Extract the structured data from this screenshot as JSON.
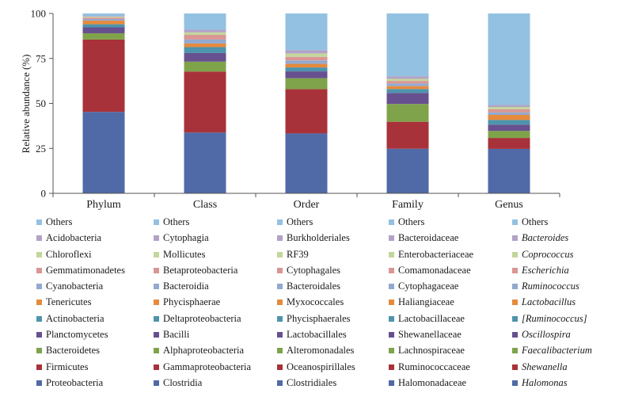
{
  "chart_data": {
    "type": "bar",
    "stacked": true,
    "ylabel": "Relative abundance (%)",
    "ylim": [
      0,
      100
    ],
    "yticks": [
      0,
      25,
      50,
      75,
      100
    ],
    "categories": [
      "Phylum",
      "Class",
      "Order",
      "Family",
      "Genus"
    ],
    "legend_placement": "bottom",
    "stacks": [
      {
        "category": "Phylum",
        "segments": [
          {
            "name": "Proteobacteria",
            "value": 45.3,
            "color": "#4f6aa6"
          },
          {
            "name": "Firmicutes",
            "value": 40.2,
            "color": "#a8323a"
          },
          {
            "name": "Bacteroidetes",
            "value": 3.5,
            "color": "#7fa34a"
          },
          {
            "name": "Planctomycetes",
            "value": 3.3,
            "color": "#67508f"
          },
          {
            "name": "Actinobacteria",
            "value": 1.7,
            "color": "#4d94ac"
          },
          {
            "name": "Tenericutes",
            "value": 2.0,
            "color": "#e68a3c"
          },
          {
            "name": "Cyanobacteria",
            "value": 0.9,
            "color": "#93a9d0"
          },
          {
            "name": "Gemmatimonadetes",
            "value": 0.8,
            "color": "#d99694"
          },
          {
            "name": "Chloroflexi",
            "value": 0.5,
            "color": "#c3d69b"
          },
          {
            "name": "Acidobacteria",
            "value": 0.4,
            "color": "#b2a2c7"
          },
          {
            "name": "Others",
            "value": 1.4,
            "color": "#93c1e1"
          }
        ]
      },
      {
        "category": "Class",
        "segments": [
          {
            "name": "Clostridia",
            "value": 33.8,
            "color": "#4f6aa6"
          },
          {
            "name": "Gammaproteobacteria",
            "value": 33.9,
            "color": "#a8323a"
          },
          {
            "name": "Alphaproteobacteria",
            "value": 5.5,
            "color": "#7fa34a"
          },
          {
            "name": "Bacilli",
            "value": 4.8,
            "color": "#67508f"
          },
          {
            "name": "Deltaproteobacteria",
            "value": 3.3,
            "color": "#4d94ac"
          },
          {
            "name": "Phycisphaerae",
            "value": 2.0,
            "color": "#e68a3c"
          },
          {
            "name": "Bacteroidia",
            "value": 2.2,
            "color": "#93a9d0"
          },
          {
            "name": "Betaproteobacteria",
            "value": 2.6,
            "color": "#d99694"
          },
          {
            "name": "Mollicutes",
            "value": 1.4,
            "color": "#c3d69b"
          },
          {
            "name": "Cytophagia",
            "value": 1.5,
            "color": "#b2a2c7"
          },
          {
            "name": "Others",
            "value": 9.0,
            "color": "#93c1e1"
          }
        ]
      },
      {
        "category": "Order",
        "segments": [
          {
            "name": "Clostridiales",
            "value": 33.3,
            "color": "#4f6aa6"
          },
          {
            "name": "Oceanospirillales",
            "value": 24.6,
            "color": "#a8323a"
          },
          {
            "name": "Alteromonadales",
            "value": 6.1,
            "color": "#7fa34a"
          },
          {
            "name": "Lactobacillales",
            "value": 3.8,
            "color": "#67508f"
          },
          {
            "name": "Phycisphaerales",
            "value": 2.2,
            "color": "#4d94ac"
          },
          {
            "name": "Myxococcales",
            "value": 2.0,
            "color": "#e68a3c"
          },
          {
            "name": "Bacteroidales",
            "value": 1.9,
            "color": "#93a9d0"
          },
          {
            "name": "Cytophagales",
            "value": 2.0,
            "color": "#d99694"
          },
          {
            "name": "RF39",
            "value": 1.9,
            "color": "#c3d69b"
          },
          {
            "name": "Burkholderiales",
            "value": 1.8,
            "color": "#b2a2c7"
          },
          {
            "name": "Others",
            "value": 20.4,
            "color": "#93c1e1"
          }
        ]
      },
      {
        "category": "Family",
        "segments": [
          {
            "name": "Halomonadaceae",
            "value": 24.8,
            "color": "#4f6aa6"
          },
          {
            "name": "Ruminococcaceae",
            "value": 15.0,
            "color": "#a8323a"
          },
          {
            "name": "Lachnospiraceae",
            "value": 9.9,
            "color": "#7fa34a"
          },
          {
            "name": "Shewanellaceae",
            "value": 6.1,
            "color": "#67508f"
          },
          {
            "name": "Lactobacillaceae",
            "value": 2.2,
            "color": "#4d94ac"
          },
          {
            "name": "Haliangiaceae",
            "value": 1.6,
            "color": "#e68a3c"
          },
          {
            "name": "Cytophagaceae",
            "value": 1.5,
            "color": "#93a9d0"
          },
          {
            "name": "Comamonadaceae",
            "value": 1.4,
            "color": "#d99694"
          },
          {
            "name": "Enterobacteriaceae",
            "value": 1.2,
            "color": "#c3d69b"
          },
          {
            "name": "Bacteroidaceae",
            "value": 1.4,
            "color": "#b2a2c7"
          },
          {
            "name": "Others",
            "value": 34.9,
            "color": "#93c1e1"
          }
        ]
      },
      {
        "category": "Genus",
        "segments": [
          {
            "name": "Halomonas",
            "value": 24.7,
            "color": "#4f6aa6"
          },
          {
            "name": "Shewanella",
            "value": 6.1,
            "color": "#a8323a"
          },
          {
            "name": "Faecalibacterium",
            "value": 3.9,
            "color": "#7fa34a"
          },
          {
            "name": "Oscillospira",
            "value": 3.5,
            "color": "#67508f"
          },
          {
            "name": "[Ruminococcus]",
            "value": 2.6,
            "color": "#4d94ac"
          },
          {
            "name": "Lactobacillus",
            "value": 2.8,
            "color": "#e68a3c"
          },
          {
            "name": "Ruminococcus",
            "value": 1.4,
            "color": "#93a9d0"
          },
          {
            "name": "Escherichia",
            "value": 1.8,
            "color": "#d99694"
          },
          {
            "name": "Coprococcus",
            "value": 1.2,
            "color": "#c3d69b"
          },
          {
            "name": "Bacteroides",
            "value": 1.1,
            "color": "#b2a2c7"
          },
          {
            "name": "Others",
            "value": 50.9,
            "color": "#93c1e1"
          }
        ]
      }
    ],
    "legends": [
      {
        "category": "Phylum",
        "italic": false,
        "items": [
          {
            "label": "Others",
            "color": "#93c1e1"
          },
          {
            "label": "Acidobacteria",
            "color": "#b2a2c7"
          },
          {
            "label": "Chloroflexi",
            "color": "#c3d69b"
          },
          {
            "label": "Gemmatimonadetes",
            "color": "#d99694"
          },
          {
            "label": "Cyanobacteria",
            "color": "#93a9d0"
          },
          {
            "label": "Tenericutes",
            "color": "#e68a3c"
          },
          {
            "label": "Actinobacteria",
            "color": "#4d94ac"
          },
          {
            "label": "Planctomycetes",
            "color": "#67508f"
          },
          {
            "label": "Bacteroidetes",
            "color": "#7fa34a"
          },
          {
            "label": "Firmicutes",
            "color": "#a8323a"
          },
          {
            "label": "Proteobacteria",
            "color": "#4f6aa6"
          }
        ]
      },
      {
        "category": "Class",
        "italic": false,
        "items": [
          {
            "label": "Others",
            "color": "#93c1e1"
          },
          {
            "label": "Cytophagia",
            "color": "#b2a2c7"
          },
          {
            "label": "Mollicutes",
            "color": "#c3d69b"
          },
          {
            "label": "Betaproteobacteria",
            "color": "#d99694"
          },
          {
            "label": "Bacteroidia",
            "color": "#93a9d0"
          },
          {
            "label": "Phycisphaerae",
            "color": "#e68a3c"
          },
          {
            "label": "Deltaproteobacteria",
            "color": "#4d94ac"
          },
          {
            "label": "Bacilli",
            "color": "#67508f"
          },
          {
            "label": "Alphaproteobacteria",
            "color": "#7fa34a"
          },
          {
            "label": "Gammaproteobacteria",
            "color": "#a8323a"
          },
          {
            "label": "Clostridia",
            "color": "#4f6aa6"
          }
        ]
      },
      {
        "category": "Order",
        "italic": false,
        "items": [
          {
            "label": "Others",
            "color": "#93c1e1"
          },
          {
            "label": "Burkholderiales",
            "color": "#b2a2c7"
          },
          {
            "label": "RF39",
            "color": "#c3d69b"
          },
          {
            "label": "Cytophagales",
            "color": "#d99694"
          },
          {
            "label": "Bacteroidales",
            "color": "#93a9d0"
          },
          {
            "label": "Myxococcales",
            "color": "#e68a3c"
          },
          {
            "label": "Phycisphaerales",
            "color": "#4d94ac"
          },
          {
            "label": "Lactobacillales",
            "color": "#67508f"
          },
          {
            "label": "Alteromonadales",
            "color": "#7fa34a"
          },
          {
            "label": "Oceanospirillales",
            "color": "#a8323a"
          },
          {
            "label": "Clostridiales",
            "color": "#4f6aa6"
          }
        ]
      },
      {
        "category": "Family",
        "italic": false,
        "items": [
          {
            "label": "Others",
            "color": "#93c1e1"
          },
          {
            "label": "Bacteroidaceae",
            "color": "#b2a2c7"
          },
          {
            "label": "Enterobacteriaceae",
            "color": "#c3d69b"
          },
          {
            "label": "Comamonadaceae",
            "color": "#d99694"
          },
          {
            "label": "Cytophagaceae",
            "color": "#93a9d0"
          },
          {
            "label": "Haliangiaceae",
            "color": "#e68a3c"
          },
          {
            "label": "Lactobacillaceae",
            "color": "#4d94ac"
          },
          {
            "label": "Shewanellaceae",
            "color": "#67508f"
          },
          {
            "label": "Lachnospiraceae",
            "color": "#7fa34a"
          },
          {
            "label": "Ruminococcaceae",
            "color": "#a8323a"
          },
          {
            "label": "Halomonadaceae",
            "color": "#4f6aa6"
          }
        ]
      },
      {
        "category": "Genus",
        "italic": true,
        "items": [
          {
            "label": "Others",
            "color": "#93c1e1",
            "italic": false
          },
          {
            "label": "Bacteroides",
            "color": "#b2a2c7"
          },
          {
            "label": "Coprococcus",
            "color": "#c3d69b"
          },
          {
            "label": "Escherichia",
            "color": "#d99694"
          },
          {
            "label": "Ruminococcus",
            "color": "#93a9d0"
          },
          {
            "label": "Lactobacillus",
            "color": "#e68a3c"
          },
          {
            "label": "[Ruminococcus]",
            "color": "#4d94ac"
          },
          {
            "label": "Oscillospira",
            "color": "#67508f"
          },
          {
            "label": "Faecalibacterium",
            "color": "#7fa34a"
          },
          {
            "label": "Shewanella",
            "color": "#a8323a"
          },
          {
            "label": "Halomonas",
            "color": "#4f6aa6"
          }
        ]
      }
    ]
  }
}
